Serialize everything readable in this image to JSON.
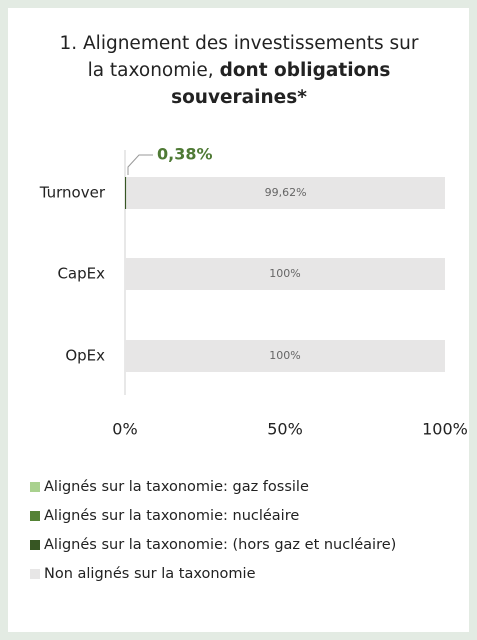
{
  "chart_data": {
    "type": "stacked-bar-horizontal",
    "title": "1. Alignement des investissements sur la taxonomie,",
    "title_bold": "dont obligations souveraines*",
    "categories": [
      "Turnover",
      "CapEx",
      "OpEx"
    ],
    "series": [
      {
        "name": "Alignés sur la taxonomie: gaz fossile",
        "color": "#a9d18e",
        "values": [
          0,
          0,
          0
        ]
      },
      {
        "name": "Alignés sur la taxonomie: nucléaire",
        "color": "#548235",
        "values": [
          0,
          0,
          0
        ]
      },
      {
        "name": "Alignés sur la taxonomie: (hors gaz et nucléaire)",
        "color": "#375623",
        "values": [
          0.38,
          0,
          0
        ],
        "value_labels": [
          "0,38%",
          null,
          null
        ]
      },
      {
        "name": "Non alignés sur la taxonomie",
        "color": "#e7e6e6",
        "values": [
          99.62,
          100,
          100
        ],
        "value_labels": [
          "99,62%",
          "100%",
          "100%"
        ]
      }
    ],
    "xlim": [
      0,
      100
    ],
    "xticks": [
      {
        "value": 0,
        "label": "0%"
      },
      {
        "value": 50,
        "label": "50%"
      },
      {
        "value": 100,
        "label": "100%"
      }
    ]
  }
}
